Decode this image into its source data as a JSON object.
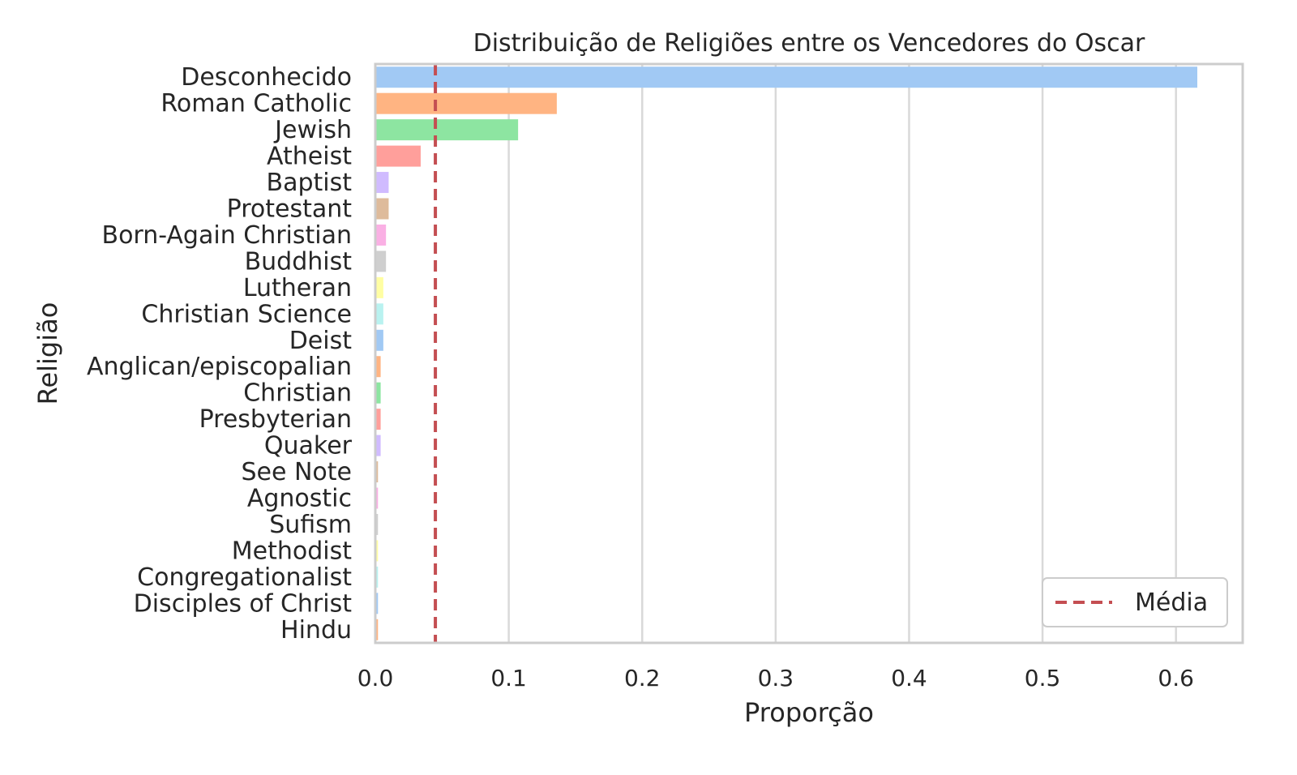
{
  "chart_data": {
    "type": "bar",
    "orientation": "horizontal",
    "title": "Distribuição de Religiões entre os Vencedores do Oscar",
    "xlabel": "Proporção",
    "ylabel": "Religião",
    "xlim": [
      0,
      0.65
    ],
    "x_ticks": [
      0.0,
      0.1,
      0.2,
      0.3,
      0.4,
      0.5,
      0.6
    ],
    "x_tick_labels": [
      "0.0",
      "0.1",
      "0.2",
      "0.3",
      "0.4",
      "0.5",
      "0.6"
    ],
    "grid": true,
    "categories": [
      "Desconhecido",
      "Roman Catholic",
      "Jewish",
      "Atheist",
      "Baptist",
      "Protestant",
      "Born-Again Christian",
      "Buddhist",
      "Lutheran",
      "Christian Science",
      "Deist",
      "Anglican/episcopalian",
      "Christian",
      "Presbyterian",
      "Quaker",
      "See Note",
      "Agnostic",
      "Sufism",
      "Methodist",
      "Congregationalist",
      "Disciples of Christ",
      "Hindu"
    ],
    "values": [
      0.616,
      0.136,
      0.107,
      0.034,
      0.01,
      0.01,
      0.008,
      0.008,
      0.006,
      0.006,
      0.006,
      0.004,
      0.004,
      0.004,
      0.004,
      0.002,
      0.002,
      0.002,
      0.002,
      0.002,
      0.002,
      0.002
    ],
    "colors": [
      "#a1c9f4",
      "#ffb482",
      "#8de5a1",
      "#ff9f9b",
      "#d0bbff",
      "#debb9b",
      "#fab0e4",
      "#cfcfcf",
      "#fffea3",
      "#b9f2f0",
      "#a1c9f4",
      "#ffb482",
      "#8de5a1",
      "#ff9f9b",
      "#d0bbff",
      "#debb9b",
      "#fab0e4",
      "#cfcfcf",
      "#fffea3",
      "#b9f2f0",
      "#a1c9f4",
      "#ffb482"
    ],
    "mean_line": {
      "value": 0.045,
      "label": "Média",
      "color": "#c44e52",
      "style": "dashed"
    },
    "legend": {
      "placement": "lower-right",
      "entries": [
        "Média"
      ]
    }
  }
}
